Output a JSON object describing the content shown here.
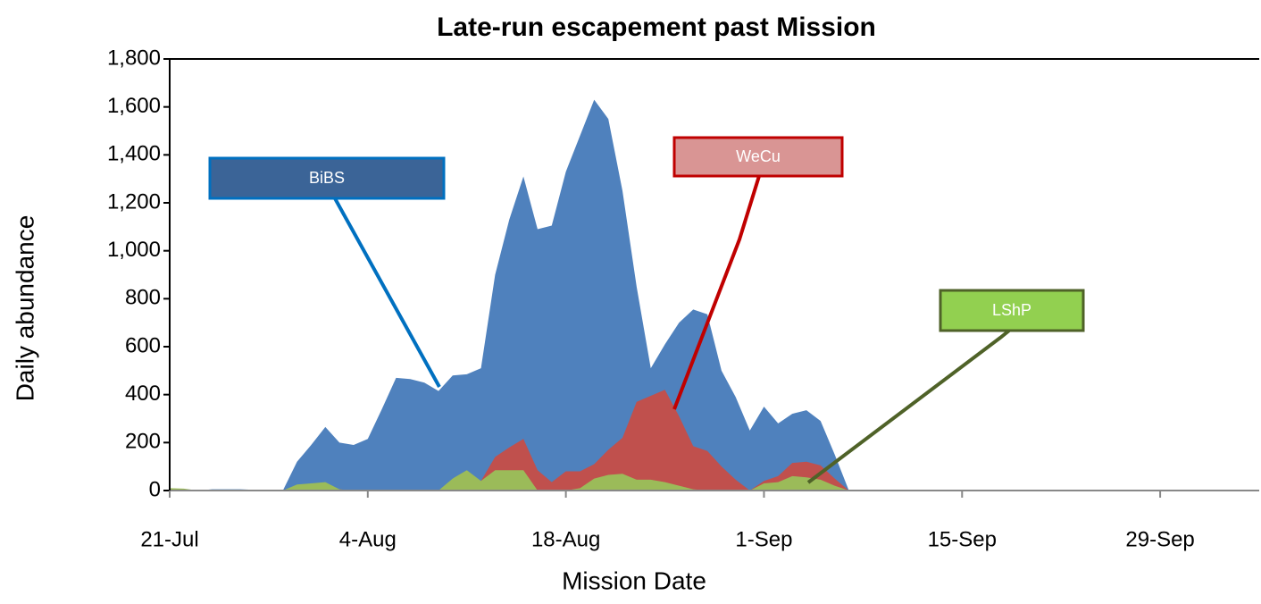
{
  "chart_data": {
    "type": "area",
    "title": "Late-run escapement past Mission",
    "x_label": "Mission Date",
    "y_label": "Daily abundance",
    "categories": [
      "21-Jul",
      null,
      null,
      null,
      null,
      null,
      null,
      null,
      null,
      null,
      null,
      null,
      null,
      null,
      "4-Aug",
      null,
      null,
      null,
      null,
      null,
      null,
      null,
      null,
      null,
      null,
      null,
      null,
      null,
      "18-Aug",
      null,
      null,
      null,
      null,
      null,
      null,
      null,
      null,
      null,
      null,
      null,
      null,
      null,
      "1-Sep",
      null,
      null,
      null,
      null,
      null,
      null,
      null,
      null,
      null,
      null,
      null,
      null,
      null,
      "15-Sep",
      null,
      null,
      null,
      null,
      null,
      null,
      null,
      null,
      null,
      null,
      null,
      null,
      null,
      "29-Sep",
      null,
      null,
      null,
      null,
      null,
      null,
      null
    ],
    "series": [
      {
        "name": "BiBS",
        "color": "#4f81bd",
        "values": [
          10,
          5,
          0,
          5,
          5,
          5,
          3,
          0,
          0,
          120,
          190,
          265,
          200,
          190,
          215,
          340,
          470,
          465,
          450,
          415,
          480,
          485,
          510,
          900,
          1130,
          1310,
          1090,
          1105,
          1330,
          1480,
          1630,
          1550,
          1250,
          850,
          510,
          610,
          700,
          755,
          735,
          500,
          390,
          250,
          350,
          280,
          320,
          335,
          290,
          150,
          0,
          0,
          0,
          0,
          0,
          0,
          0,
          0,
          0,
          0,
          0,
          0,
          0,
          0,
          0,
          0,
          0,
          0,
          0,
          0,
          0,
          0,
          0,
          0,
          0,
          0,
          0,
          0,
          0,
          0
        ]
      },
      {
        "name": "WeCu",
        "color": "#c0504d",
        "values": [
          0,
          0,
          0,
          0,
          0,
          0,
          0,
          0,
          0,
          0,
          0,
          0,
          5,
          0,
          0,
          0,
          0,
          0,
          0,
          0,
          0,
          50,
          40,
          140,
          180,
          215,
          85,
          35,
          80,
          80,
          110,
          170,
          220,
          370,
          395,
          420,
          310,
          185,
          165,
          100,
          45,
          0,
          40,
          60,
          115,
          120,
          105,
          50,
          0,
          0,
          0,
          0,
          0,
          0,
          0,
          0,
          0,
          0,
          0,
          0,
          0,
          0,
          0,
          0,
          0,
          0,
          0,
          0,
          0,
          0,
          0,
          0,
          0,
          0,
          0,
          0,
          0,
          0
        ]
      },
      {
        "name": "LShP",
        "color": "#9bbb59",
        "values": [
          10,
          8,
          0,
          0,
          0,
          0,
          0,
          0,
          0,
          25,
          30,
          35,
          5,
          0,
          0,
          0,
          0,
          0,
          0,
          0,
          50,
          85,
          40,
          85,
          85,
          85,
          0,
          0,
          0,
          10,
          50,
          65,
          70,
          45,
          45,
          35,
          20,
          5,
          0,
          0,
          0,
          0,
          30,
          35,
          60,
          55,
          45,
          20,
          0,
          0,
          0,
          0,
          0,
          0,
          0,
          0,
          0,
          0,
          0,
          0,
          0,
          0,
          0,
          0,
          0,
          0,
          0,
          0,
          0,
          0,
          0,
          0,
          0,
          0,
          0,
          0,
          0,
          0
        ]
      }
    ],
    "ylim": [
      0,
      1800
    ],
    "yticks": [
      0,
      200,
      400,
      600,
      800,
      {
        "value": 1000,
        "label": "1,000"
      },
      {
        "value": 1200,
        "label": "1,200"
      },
      {
        "value": 1400,
        "label": "1,400"
      },
      {
        "value": 1600,
        "label": "1,600"
      },
      {
        "value": 1800,
        "label": "1,800"
      }
    ],
    "grid": false
  }
}
